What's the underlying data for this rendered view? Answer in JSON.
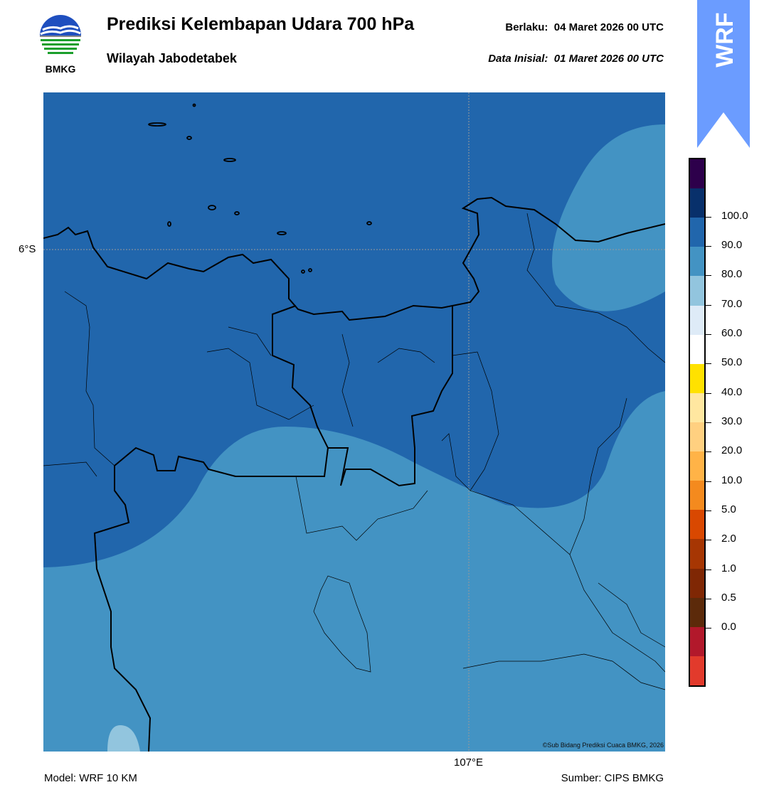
{
  "header": {
    "title": "Prediksi Kelembapan Udara 700 hPa",
    "subtitle": "Wilayah Jabodetabek",
    "valid_label": "Berlaku:",
    "valid_time": "04 Maret 2026 00 UTC",
    "init_label": "Data Inisial:",
    "init_time": "01 Maret 2026 00 UTC"
  },
  "logo": {
    "text": "BMKG",
    "icon": "bmkg-logo-icon"
  },
  "badge": {
    "text": "WRF",
    "color": "#6b9cff"
  },
  "map": {
    "lat_label": "6°S",
    "lon_label": "107°E",
    "credit": "©Sub Bidang Prediksi Cuaca BMKG, 2026",
    "colors": {
      "band_80_90": "#2166ac",
      "band_70_80": "#4393c3",
      "band_60_70": "#92c5de"
    }
  },
  "colorbar": {
    "labels": [
      "100.0",
      "90.0",
      "80.0",
      "70.0",
      "60.0",
      "50.0",
      "40.0",
      "30.0",
      "20.0",
      "10.0",
      "5.0",
      "2.0",
      "1.0",
      "0.5",
      "0.0"
    ],
    "colors": [
      "#2d004b",
      "#08306b",
      "#2166ac",
      "#4393c3",
      "#92c5de",
      "#deebf7",
      "#ffffff",
      "#ffe100",
      "#ffe7a0",
      "#ffd080",
      "#ffb347",
      "#f48a1e",
      "#d94801",
      "#a63603",
      "#7f2704",
      "#5c2a0a",
      "#b2182b",
      "#e23a2c"
    ]
  },
  "footer": {
    "model": "Model: WRF 10 KM",
    "source": "Sumber: CIPS BMKG"
  }
}
